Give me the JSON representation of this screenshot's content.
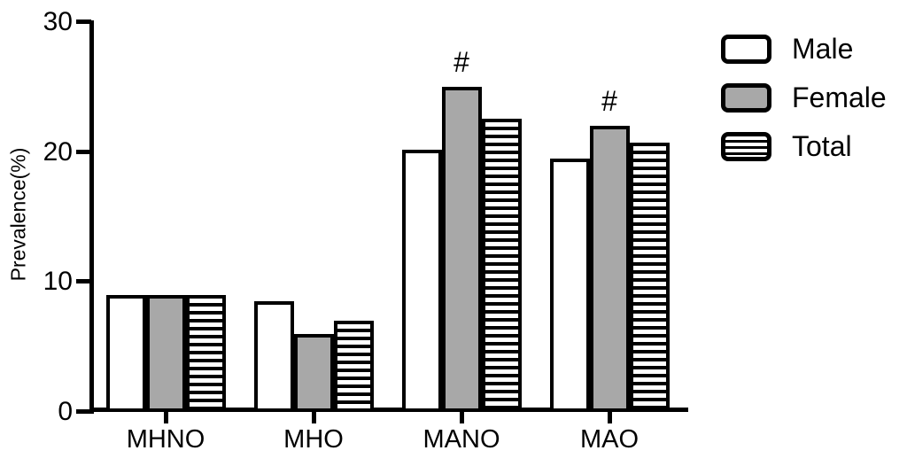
{
  "chart_data": {
    "type": "bar",
    "title": "",
    "xlabel": "",
    "ylabel": "Prevalence(%)",
    "ylim": [
      0,
      30
    ],
    "yticks": [
      0,
      10,
      20,
      30
    ],
    "categories": [
      "MHNO",
      "MHO",
      "MANO",
      "MAO"
    ],
    "series": [
      {
        "name": "Male",
        "fill": "white",
        "values": [
          9.0,
          8.5,
          20.2,
          19.5
        ]
      },
      {
        "name": "Female",
        "fill": "gray",
        "values": [
          9.0,
          6.0,
          25.0,
          22.0
        ]
      },
      {
        "name": "Total",
        "fill": "stripes",
        "values": [
          9.0,
          7.0,
          22.6,
          20.7
        ]
      }
    ],
    "annotations": [
      {
        "text": "#",
        "category": "MANO",
        "series": "Female"
      },
      {
        "text": "#",
        "category": "MAO",
        "series": "Female"
      }
    ],
    "legend_position": "top-right",
    "grid": false
  },
  "colors": {
    "background": "#ffffff",
    "axis": "#000000",
    "bar_border": "#000000",
    "male_fill": "#ffffff",
    "female_fill": "#a8a8a8",
    "stripe_color": "#000000"
  }
}
